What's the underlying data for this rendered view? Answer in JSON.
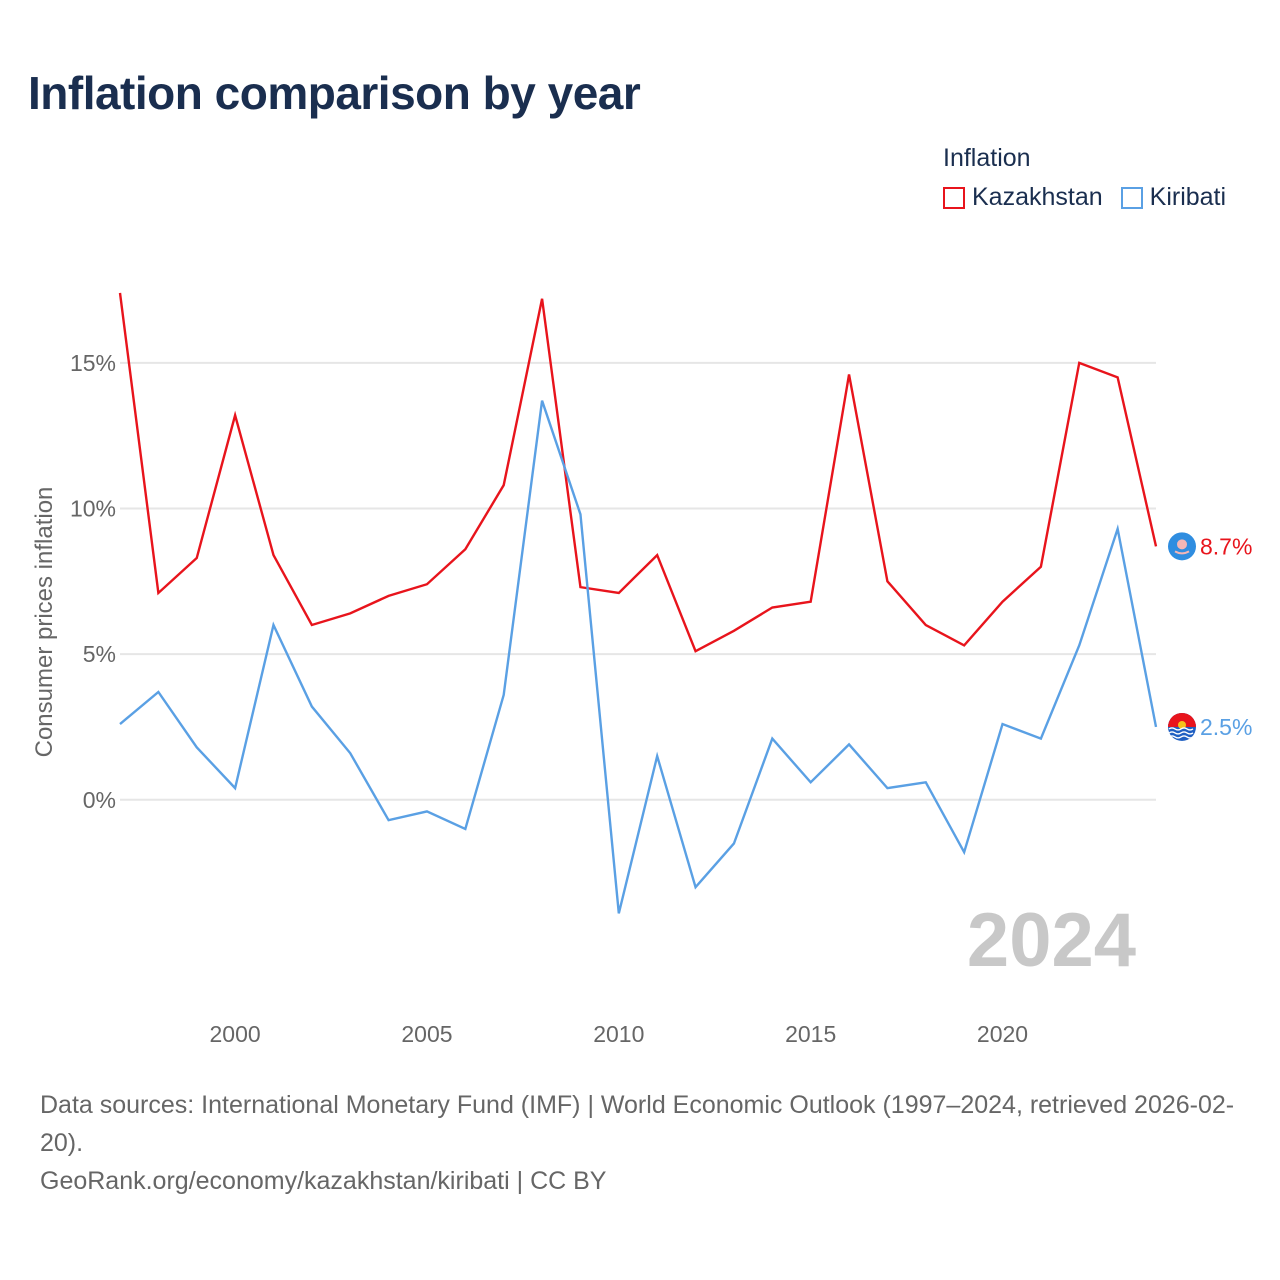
{
  "title": "Inflation comparison by year",
  "legend": {
    "title": "Inflation",
    "items": [
      {
        "label": "Kazakhstan",
        "color": "#e8141c"
      },
      {
        "label": "Kiribati",
        "color": "#5aa0e4"
      }
    ]
  },
  "chart_data": {
    "type": "line",
    "title": "Inflation comparison by year",
    "xlabel": "",
    "ylabel": "Consumer prices inflation",
    "x": [
      1997,
      1998,
      1999,
      2000,
      2001,
      2002,
      2003,
      2004,
      2005,
      2006,
      2007,
      2008,
      2009,
      2010,
      2011,
      2012,
      2013,
      2014,
      2015,
      2016,
      2017,
      2018,
      2019,
      2020,
      2021,
      2022,
      2023,
      2024
    ],
    "series": [
      {
        "name": "Kazakhstan",
        "color": "#e8141c",
        "values": [
          17.4,
          7.1,
          8.3,
          13.2,
          8.4,
          6.0,
          6.4,
          7.0,
          7.4,
          8.6,
          10.8,
          17.2,
          7.3,
          7.1,
          8.4,
          5.1,
          5.8,
          6.6,
          6.8,
          14.6,
          7.5,
          6.0,
          5.3,
          6.8,
          8.0,
          15.0,
          14.5,
          8.7
        ],
        "end_label": "8.7%"
      },
      {
        "name": "Kiribati",
        "color": "#5aa0e4",
        "values": [
          2.6,
          3.7,
          1.8,
          0.4,
          6.0,
          3.2,
          1.6,
          -0.7,
          -0.4,
          -1.0,
          3.6,
          13.7,
          9.8,
          -3.9,
          1.5,
          -3.0,
          -1.5,
          2.1,
          0.6,
          1.9,
          0.4,
          0.6,
          -1.8,
          2.6,
          2.1,
          5.3,
          9.3,
          2.5
        ],
        "end_label": "2.5%"
      }
    ],
    "xlim": [
      1997,
      2024
    ],
    "ylim": [
      -5.5,
      17.5
    ],
    "y_ticks": [
      0,
      5,
      10,
      15
    ],
    "y_tick_labels": [
      "0%",
      "5%",
      "10%",
      "15%"
    ],
    "x_ticks": [
      2000,
      2005,
      2010,
      2015,
      2020
    ],
    "x_tick_labels": [
      "2000",
      "2005",
      "2010",
      "2015",
      "2020"
    ],
    "grid": true,
    "legend_position": "top-right",
    "year_watermark": "2024"
  },
  "source": {
    "line1": "Data sources: International Monetary Fund (IMF) | World Economic Outlook (1997–2024, retrieved 2026-02-20).",
    "line2": "GeoRank.org/economy/kazakhstan/kiribati | CC BY"
  },
  "colors": {
    "title": "#1a2e4f",
    "grid": "#e6e6e6",
    "axis_text": "#666666",
    "watermark": "#c8c8c8"
  },
  "icons": [
    "kazakhstan-flag-icon",
    "kiribati-flag-icon"
  ]
}
